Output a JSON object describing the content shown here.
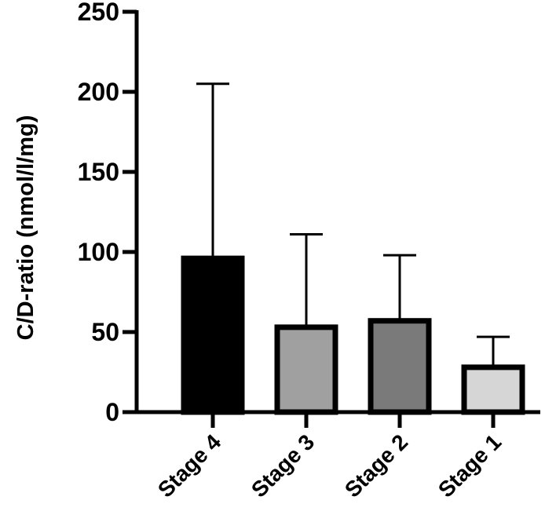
{
  "chart_data": {
    "type": "bar",
    "title": "",
    "xlabel": "",
    "ylabel": "C/D-ratio (nmol/l/mg)",
    "ylim": [
      0,
      250
    ],
    "yticks": [
      0,
      50,
      100,
      150,
      200,
      250
    ],
    "categories": [
      "Stage 4",
      "Stage 3",
      "Stage 2",
      "Stage 1"
    ],
    "values": [
      96,
      53,
      57,
      28
    ],
    "error_upper": [
      205,
      111,
      98,
      47
    ],
    "colors": [
      "#000000",
      "#a0a0a0",
      "#7a7a7a",
      "#d6d6d6"
    ],
    "grid": false,
    "legend": "none"
  }
}
